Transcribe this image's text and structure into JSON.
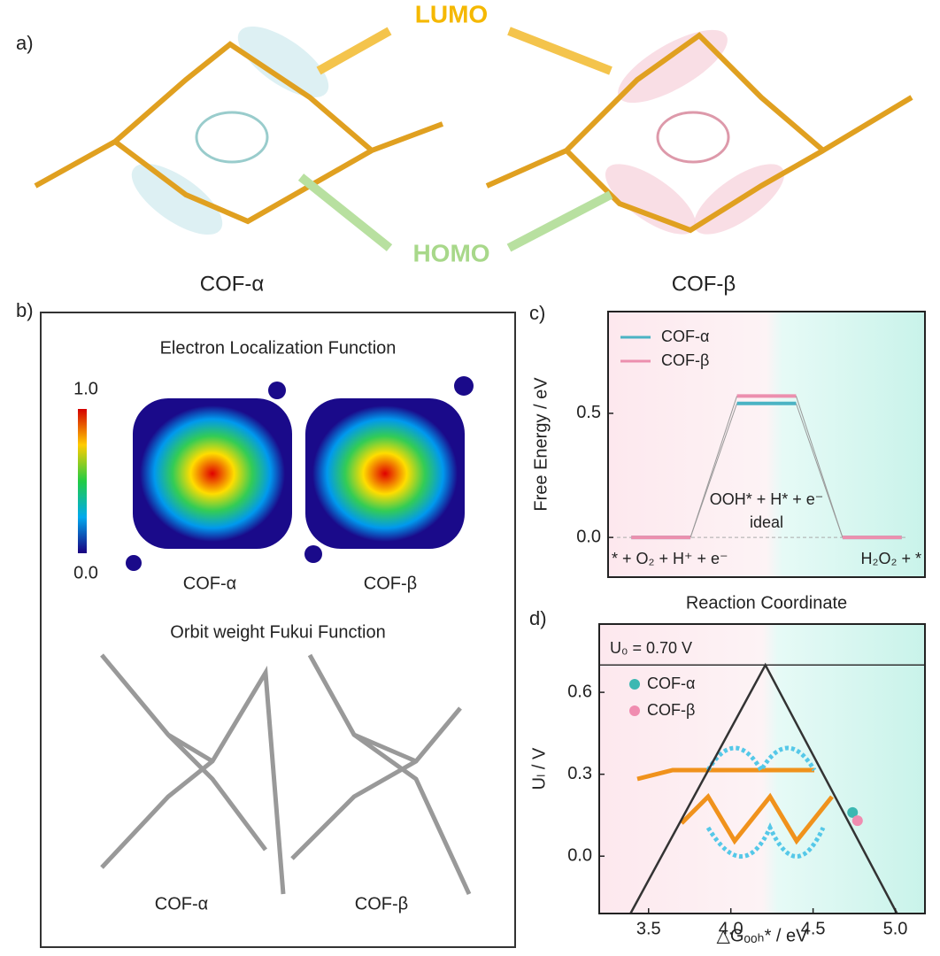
{
  "panel_labels": [
    "a)",
    "b)",
    "c)",
    "d)"
  ],
  "panel_a": {
    "lumo": "LUMO",
    "homo": "HOMO",
    "left_label": "COF-α",
    "right_label": "COF-β"
  },
  "panel_b": {
    "elf_title": "Electron Localization Function",
    "colorbar_max": "1.0",
    "colorbar_min": "0.0",
    "elf_labels": [
      "COF-α",
      "COF-β"
    ],
    "fukui_title": "Orbit weight Fukui Function",
    "fukui_labels": [
      "COF-α",
      "COF-β"
    ]
  },
  "chart_data": [
    {
      "type": "step",
      "ylabel": "Free Energy / eV",
      "xlabel": "Reaction Coordinate",
      "categories": [
        "* + O₂ + H⁺ + e⁻",
        "OOH* + H* + e⁻",
        "H₂O₂ + *"
      ],
      "series": [
        {
          "name": "COF-α",
          "color": "#4bb3c4",
          "values": [
            0,
            0.54,
            0
          ]
        },
        {
          "name": "COF-β",
          "color": "#ec8fae",
          "values": [
            0,
            0.57,
            0
          ]
        }
      ],
      "reference": {
        "label": "ideal",
        "value": 0
      },
      "ylim": [
        -0.16,
        0.91
      ],
      "yticks": [
        {
          "value": 0,
          "label": "0.0"
        },
        {
          "value": 0.5,
          "label": "0.5"
        }
      ],
      "legend": "upper left"
    },
    {
      "type": "scatter",
      "ylabel": "Uₗ / V",
      "xlabel": "△Gₒₒₕ* / eV",
      "series": [
        {
          "name": "COF-α",
          "color": "#3cb8b2",
          "x": [
            4.74
          ],
          "values": [
            0.16
          ]
        },
        {
          "name": "COF-β",
          "color": "#f08cb0",
          "x": [
            4.77
          ],
          "values": [
            0.13
          ]
        }
      ],
      "volcano": {
        "x": [
          3.39,
          4.21,
          5.01
        ],
        "y": [
          -0.21,
          0.7,
          -0.21
        ]
      },
      "reference": {
        "label": "U₀ = 0.70 V",
        "value": 0.7
      },
      "xlim": [
        3.2,
        5.18
      ],
      "ylim": [
        -0.21,
        0.85
      ],
      "xticks": [
        {
          "value": 3.5,
          "label": "3.5"
        },
        {
          "value": 4,
          "label": "4.0"
        },
        {
          "value": 4.5,
          "label": "4.5"
        },
        {
          "value": 5,
          "label": "5.0"
        }
      ],
      "yticks": [
        {
          "value": 0,
          "label": "0.0"
        },
        {
          "value": 0.3,
          "label": "0.3"
        },
        {
          "value": 0.6,
          "label": "0.6"
        }
      ],
      "legend": "upper left"
    }
  ]
}
